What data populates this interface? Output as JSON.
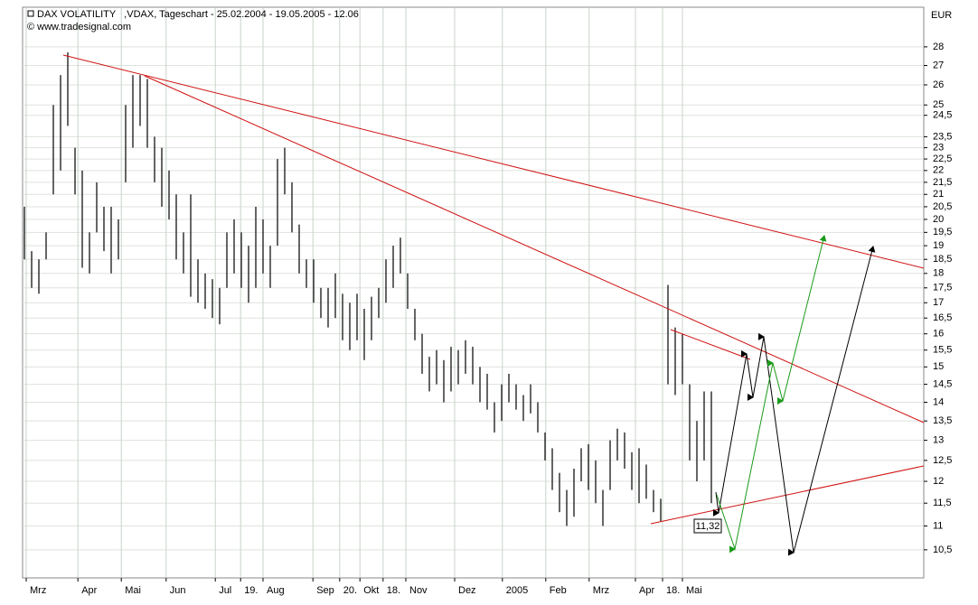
{
  "chart_data": {
    "type": "hilo",
    "title": "DAX VOLATILITY   ,VDAX, Tageschart - 25.02.2004 - 19.05.2005 - 12.06",
    "subtitle": "© www.tradesignal.com",
    "y_axis_label": "EUR",
    "annotations": [
      "11,32"
    ],
    "color": "#000000",
    "log_scale": true,
    "grid": true,
    "ylim": [
      9.94,
      30.25
    ],
    "yticks": [
      28,
      27,
      26,
      25,
      {
        "value": 24.5,
        "label": "24,5"
      },
      {
        "value": 23.5,
        "label": "23,5"
      },
      23,
      {
        "value": 22.5,
        "label": "22,5"
      },
      22,
      {
        "value": 21.5,
        "label": "21,5"
      },
      21,
      {
        "value": 20.5,
        "label": "20,5"
      },
      20,
      {
        "value": 19.5,
        "label": "19,5"
      },
      19,
      {
        "value": 18.5,
        "label": "18,5"
      },
      18,
      {
        "value": 17.5,
        "label": "17,5"
      },
      17,
      {
        "value": 16.5,
        "label": "16,5"
      },
      16,
      {
        "value": 15.5,
        "label": "15,5"
      },
      15,
      {
        "value": 14.5,
        "label": "14,5"
      },
      14,
      {
        "value": 13.5,
        "label": "13,5"
      },
      13,
      {
        "value": 12.5,
        "label": "12,5"
      },
      12,
      {
        "value": 11.5,
        "label": "11,5"
      },
      11,
      {
        "value": 10.5,
        "label": "10,5"
      }
    ],
    "xlim": [
      -0.25,
      124.375
    ],
    "xticks": [
      {
        "value": 0.25,
        "label": "Mrz"
      },
      {
        "value": 7.4,
        "label": "Apr"
      },
      {
        "value": 13.4,
        "label": "Mai"
      },
      {
        "value": 19.6,
        "label": "Jun"
      },
      {
        "value": 26.4,
        "label": "Jul"
      },
      {
        "value": 29.9,
        "label": "19."
      },
      {
        "value": 33,
        "label": "Aug"
      },
      {
        "value": 39.9,
        "label": "Sep"
      },
      {
        "value": 43.6,
        "label": "20."
      },
      {
        "value": 46.4,
        "label": "Okt"
      },
      {
        "value": 49.6,
        "label": "18."
      },
      {
        "value": 52.75,
        "label": "Nov"
      },
      {
        "value": 59.5,
        "label": "Dez"
      },
      {
        "value": 66.1,
        "label": "2005"
      },
      {
        "value": 72.1,
        "label": "Feb"
      },
      {
        "value": 78.1,
        "label": "Mrz"
      },
      {
        "value": 84.5,
        "label": "Apr"
      },
      {
        "value": 88.25,
        "label": "18."
      },
      {
        "value": 91,
        "label": "Mai"
      }
    ],
    "high": [
      20.5,
      18.8,
      18.5,
      19.5,
      25,
      26.5,
      27.7,
      23,
      22,
      19.5,
      21.5,
      20.5,
      20.5,
      20,
      25,
      26.5,
      26.5,
      26.3,
      23.5,
      23,
      22,
      21,
      19.5,
      21,
      18.5,
      18,
      17.8,
      17.5,
      19.5,
      20,
      19.5,
      19,
      20.5,
      20,
      19,
      22.5,
      23,
      21.5,
      19.8,
      18.5,
      18.5,
      17.5,
      17.5,
      18,
      17.3,
      17,
      17.3,
      16.8,
      17.2,
      17.5,
      18.5,
      19,
      19.3,
      18,
      16.8,
      16,
      15.3,
      15.5,
      15.2,
      15.6,
      15.5,
      15.8,
      15.6,
      15,
      14.8,
      14,
      14.5,
      14.8,
      14.5,
      14.2,
      14.5,
      14,
      13.2,
      12.8,
      12.2,
      11.8,
      12.3,
      12.8,
      12.9,
      12.5,
      11.8,
      13,
      13.3,
      13.2,
      12.7,
      12.8,
      12.4,
      11.8,
      11.6,
      17.6,
      16.2,
      16,
      14.5,
      13.5,
      14.3,
      14.3
    ],
    "low": [
      18.5,
      17.5,
      17.3,
      18.5,
      21,
      22,
      24,
      21,
      18.2,
      18,
      19.5,
      18.8,
      18,
      18.5,
      21.5,
      23,
      24,
      23,
      21.5,
      20.5,
      20,
      18.5,
      18,
      17.2,
      17,
      16.8,
      16.5,
      16.3,
      17.5,
      18,
      17.5,
      17,
      17.5,
      18,
      17.5,
      19,
      21,
      19.5,
      18,
      17.5,
      17,
      16.5,
      16.2,
      16.5,
      15.8,
      15.5,
      15.8,
      15.2,
      15.8,
      16.5,
      17,
      17.5,
      18,
      16.8,
      15.8,
      14.8,
      14.3,
      14.5,
      14,
      14.3,
      14.5,
      14.8,
      14.5,
      14,
      13.8,
      13.2,
      13.5,
      14,
      13.8,
      13.5,
      13.7,
      13.2,
      12.5,
      11.8,
      11.3,
      11,
      11.2,
      12,
      11.8,
      11.5,
      11,
      11.8,
      12.5,
      12.3,
      11.8,
      11.5,
      11.6,
      11.3,
      11.1,
      14.5,
      14.2,
      14.5,
      12.5,
      12,
      12.5,
      11.5
    ]
  }
}
